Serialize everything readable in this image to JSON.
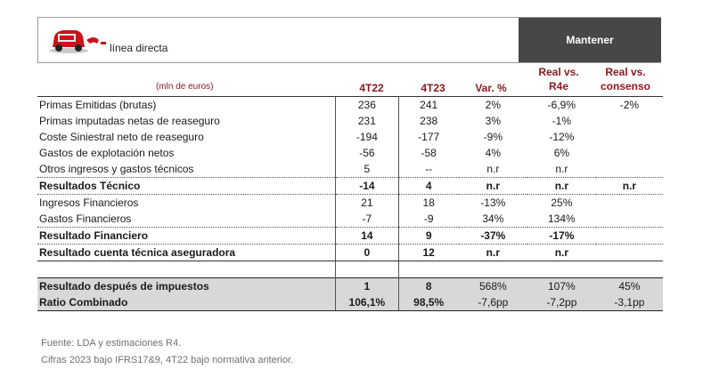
{
  "header": {
    "brand": "línea directa",
    "recommendation": "Mantener"
  },
  "columns": {
    "unit": "(mln de euros)",
    "c1": "4T22",
    "c2": "4T23",
    "c3": "Var. %",
    "c4_line1": "Real vs.",
    "c4_line2": "R4e",
    "c5_line1": "Real vs.",
    "c5_line2": "consenso"
  },
  "rows": [
    {
      "label": "Primas Emitidas (brutas)",
      "v1": "236",
      "v2": "241",
      "v3": "2%",
      "v4": "-6,9%",
      "v5": "-2%"
    },
    {
      "label": "Primas imputadas netas de reaseguro",
      "v1": "231",
      "v2": "238",
      "v3": "3%",
      "v4": "-1%",
      "v5": ""
    },
    {
      "label": "Coste Siniestral neto de reaseguro",
      "v1": "-194",
      "v2": "-177",
      "v3": "-9%",
      "v4": "-12%",
      "v5": ""
    },
    {
      "label": "Gastos de explotación netos",
      "v1": "-56",
      "v2": "-58",
      "v3": "4%",
      "v4": "6%",
      "v5": ""
    },
    {
      "label": "Otros ingresos y gastos técnicos",
      "v1": "5",
      "v2": "--",
      "v3": "n.r",
      "v4": "n.r",
      "v5": ""
    },
    {
      "label": "Resultados Técnico",
      "v1": "-14",
      "v2": "4",
      "v3": "n.r",
      "v4": "n.r",
      "v5": "n.r"
    },
    {
      "label": "Ingresos Financieros",
      "v1": "21",
      "v2": "18",
      "v3": "-13%",
      "v4": "25%",
      "v5": ""
    },
    {
      "label": "Gastos Financieros",
      "v1": "-7",
      "v2": "-9",
      "v3": "34%",
      "v4": "134%",
      "v5": ""
    },
    {
      "label": "Resultado Financiero",
      "v1": "14",
      "v2": "9",
      "v3": "-37%",
      "v4": "-17%",
      "v5": ""
    },
    {
      "label": "Resultado cuenta técnica aseguradora",
      "v1": "0",
      "v2": "12",
      "v3": "n.r",
      "v4": "n.r",
      "v5": ""
    },
    {
      "label": "Resultado después de impuestos",
      "v1": "1",
      "v2": "8",
      "v3": "568%",
      "v4": "107%",
      "v5": "45%"
    },
    {
      "label": "Ratio Combinado",
      "v1": "106,1%",
      "v2": "98,5%",
      "v3": "-7,6pp",
      "v4": "-7,2pp",
      "v5": "-3,1pp"
    }
  ],
  "footer": {
    "source": "Fuente: LDA y estimaciones R4.",
    "note": "Cifras 2023 bajo IFRS17&9, 4T22 bajo normativa anterior."
  },
  "colors": {
    "accent": "#8b1a22",
    "header_dark": "#474747",
    "grey_row": "#d8d8d8"
  }
}
